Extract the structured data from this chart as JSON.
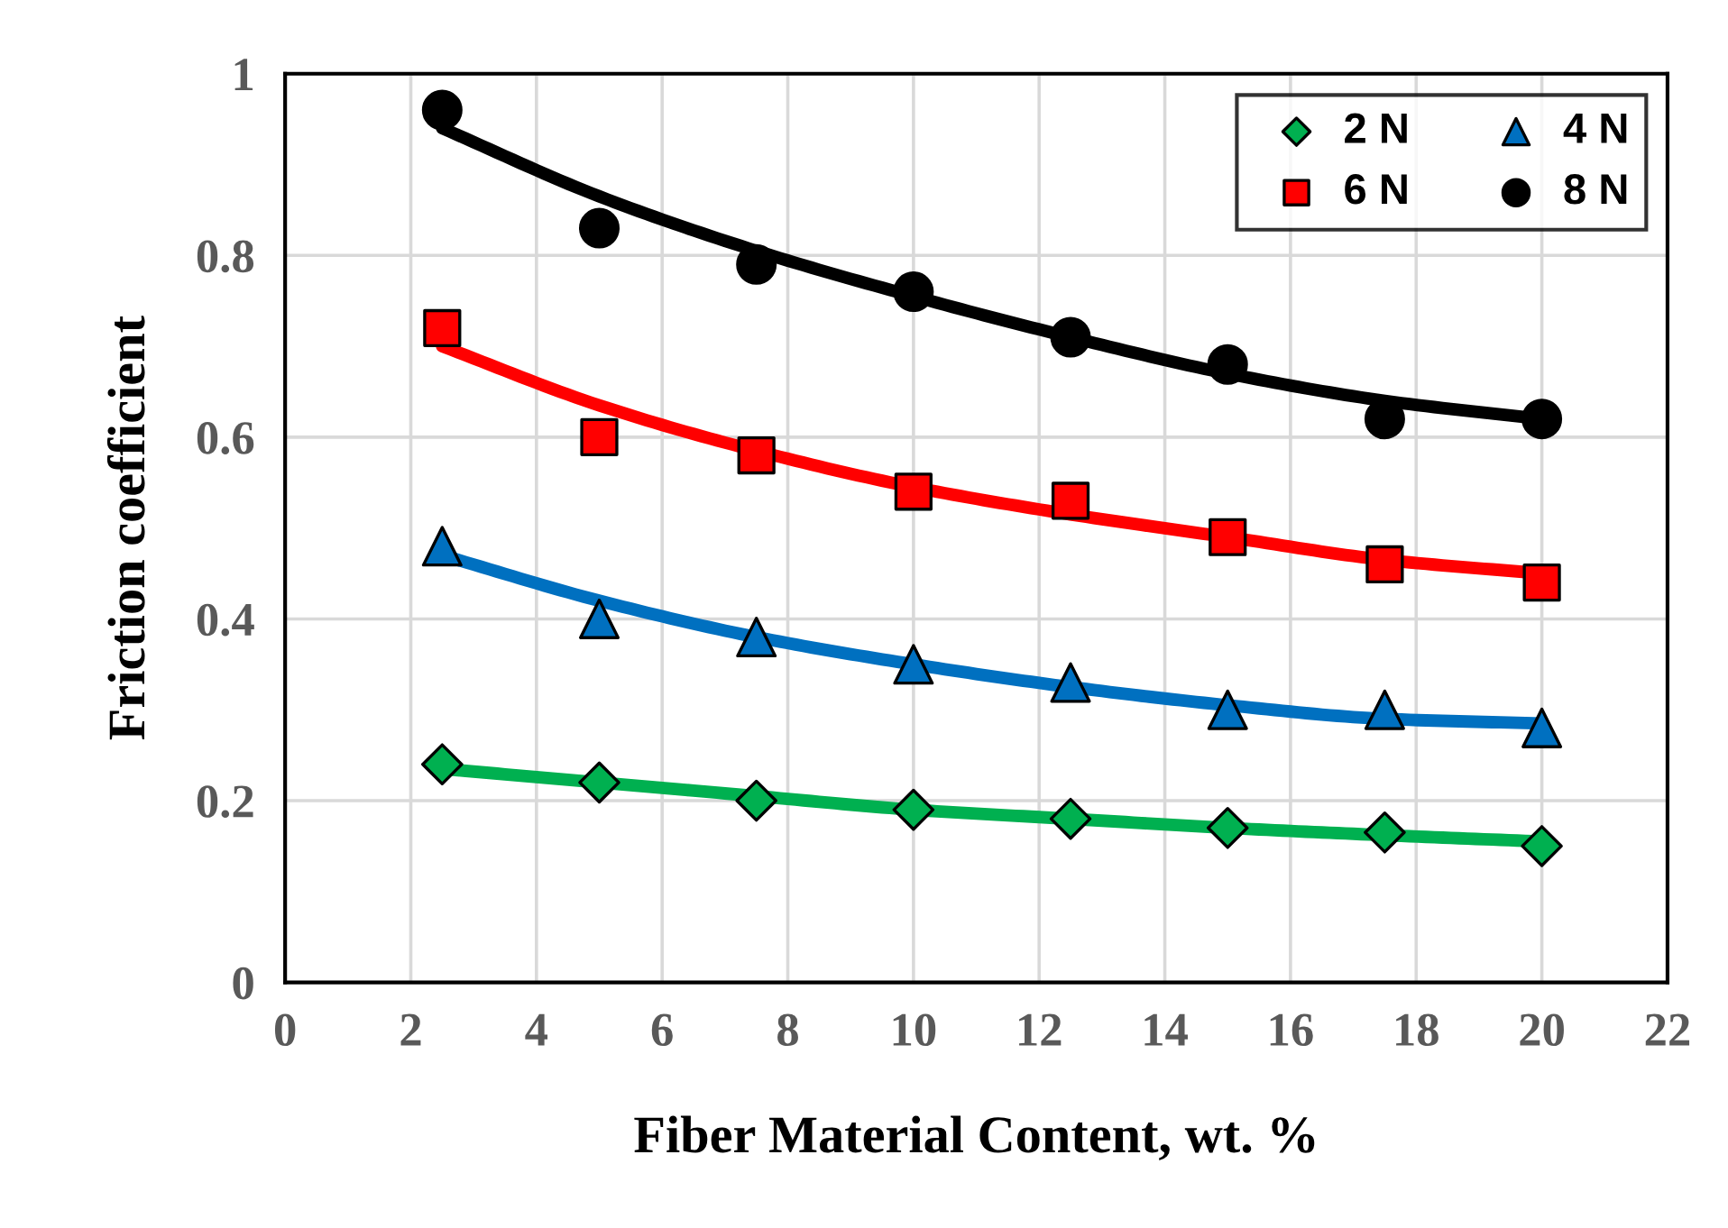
{
  "chart_data": {
    "type": "scatter",
    "xlabel": "Fiber Material Content, wt. %",
    "ylabel": "Friction coefficient",
    "xlim": [
      0,
      22
    ],
    "xticks": [
      0,
      2,
      4,
      6,
      8,
      10,
      12,
      14,
      16,
      18,
      20,
      22
    ],
    "ylim": [
      0,
      1
    ],
    "yticks": [
      0,
      0.2,
      0.4,
      0.6,
      0.8,
      1
    ],
    "grid": true,
    "legend": "top right",
    "series": [
      {
        "name": "2 N",
        "marker": "diamond",
        "color": "#00b050",
        "x": [
          2.5,
          5,
          7.5,
          10,
          12.5,
          15,
          17.5,
          20
        ],
        "values": [
          0.24,
          0.22,
          0.2,
          0.19,
          0.18,
          0.17,
          0.165,
          0.15
        ]
      },
      {
        "name": "4 N",
        "marker": "triangle",
        "color": "#0070c0",
        "x": [
          2.5,
          5,
          7.5,
          10,
          12.5,
          15,
          17.5,
          20
        ],
        "values": [
          0.48,
          0.4,
          0.38,
          0.35,
          0.33,
          0.3,
          0.3,
          0.28
        ]
      },
      {
        "name": "6 N",
        "marker": "square",
        "color": "#ff0000",
        "x": [
          2.5,
          5,
          7.5,
          10,
          12.5,
          15,
          17.5,
          20
        ],
        "values": [
          0.72,
          0.6,
          0.58,
          0.54,
          0.53,
          0.49,
          0.46,
          0.44
        ]
      },
      {
        "name": "8 N",
        "marker": "circle",
        "color": "#000000",
        "x": [
          2.5,
          5,
          7.5,
          10,
          12.5,
          15,
          17.5,
          20
        ],
        "values": [
          0.96,
          0.83,
          0.79,
          0.76,
          0.71,
          0.68,
          0.62,
          0.62
        ]
      },
      {
        "type": "line",
        "color": "#00b050",
        "x": [
          2.5,
          5,
          7.5,
          10,
          12.5,
          15,
          17.5,
          20
        ],
        "values": [
          0.235,
          0.22,
          0.205,
          0.19,
          0.18,
          0.17,
          0.162,
          0.155
        ]
      },
      {
        "type": "line",
        "color": "#0070c0",
        "x": [
          2.5,
          5,
          7.5,
          10,
          12.5,
          15,
          17.5,
          20
        ],
        "values": [
          0.47,
          0.42,
          0.38,
          0.35,
          0.325,
          0.305,
          0.29,
          0.285
        ]
      },
      {
        "type": "line",
        "color": "#ff0000",
        "x": [
          2.5,
          5,
          7.5,
          10,
          12.5,
          15,
          17.5,
          20
        ],
        "values": [
          0.7,
          0.635,
          0.585,
          0.545,
          0.515,
          0.49,
          0.465,
          0.45
        ]
      },
      {
        "type": "line",
        "color": "#000000",
        "x": [
          2.5,
          5,
          7.5,
          10,
          12.5,
          15,
          17.5,
          20
        ],
        "values": [
          0.94,
          0.865,
          0.805,
          0.755,
          0.71,
          0.67,
          0.64,
          0.62
        ]
      }
    ]
  }
}
